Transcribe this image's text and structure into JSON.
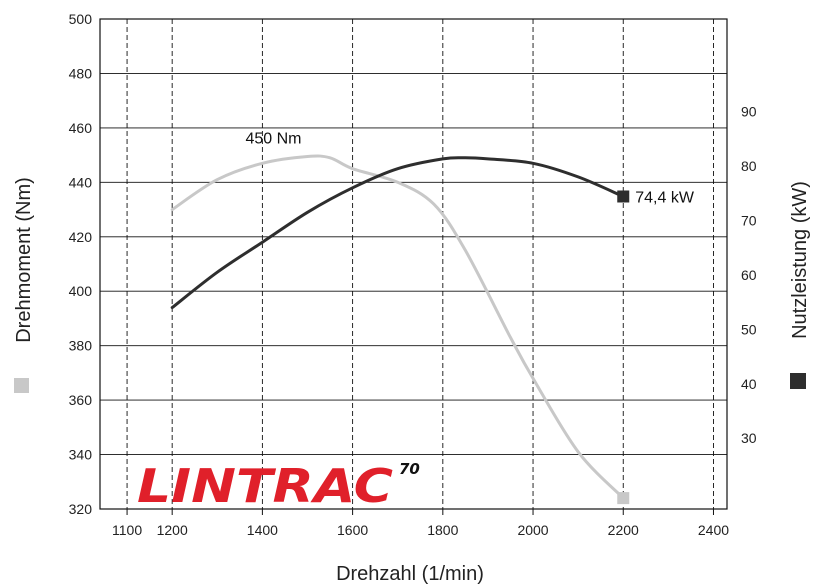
{
  "chart_data": {
    "type": "line",
    "xlabel": "Drehzahl (1/min)",
    "ylabel_left": "Drehmoment (Nm)",
    "ylabel_right": "Nutzleistung (kW)",
    "x_ticks": [
      1100,
      1200,
      1400,
      1600,
      1800,
      2000,
      2200,
      2400
    ],
    "xlim": [
      1040,
      2430
    ],
    "ylim_left": [
      320,
      500
    ],
    "y_left_ticks": [
      320,
      340,
      360,
      380,
      400,
      420,
      440,
      460,
      480,
      500
    ],
    "ylim_right": [
      17,
      107
    ],
    "y_right_ticks": [
      30,
      40,
      50,
      60,
      70,
      80,
      90
    ],
    "grid": true,
    "series": [
      {
        "name": "Drehmoment (Nm)",
        "axis": "left",
        "color": "#c8c8c8",
        "x": [
          1200,
          1300,
          1400,
          1500,
          1550,
          1600,
          1700,
          1780,
          1850,
          1950,
          2000,
          2100,
          2200
        ],
        "y": [
          430,
          441,
          447,
          449.5,
          449,
          445,
          440,
          432,
          415,
          383,
          368,
          341,
          324
        ]
      },
      {
        "name": "Nutzleistung (kW)",
        "axis": "right",
        "color": "#2e2e2e",
        "x": [
          1200,
          1300,
          1400,
          1500,
          1600,
          1700,
          1800,
          1850,
          1900,
          2000,
          2100,
          2200
        ],
        "y": [
          54,
          60.5,
          66,
          71.5,
          76,
          79.5,
          81.3,
          81.5,
          81.3,
          80.5,
          78,
          74.4
        ]
      }
    ],
    "annotations": [
      {
        "text": "450 Nm",
        "x": 1500,
        "y": 449.5,
        "axis": "left"
      },
      {
        "text": "74,4 kW",
        "x": 2200,
        "y": 74.4,
        "axis": "right"
      }
    ]
  },
  "legend_markers": {
    "torque_color": "#c8c8c8",
    "power_color": "#2e2e2e"
  },
  "logo": {
    "text": "LINTRAC",
    "superscript": "70",
    "color": "#e0202a",
    "super_color": "#111111"
  }
}
